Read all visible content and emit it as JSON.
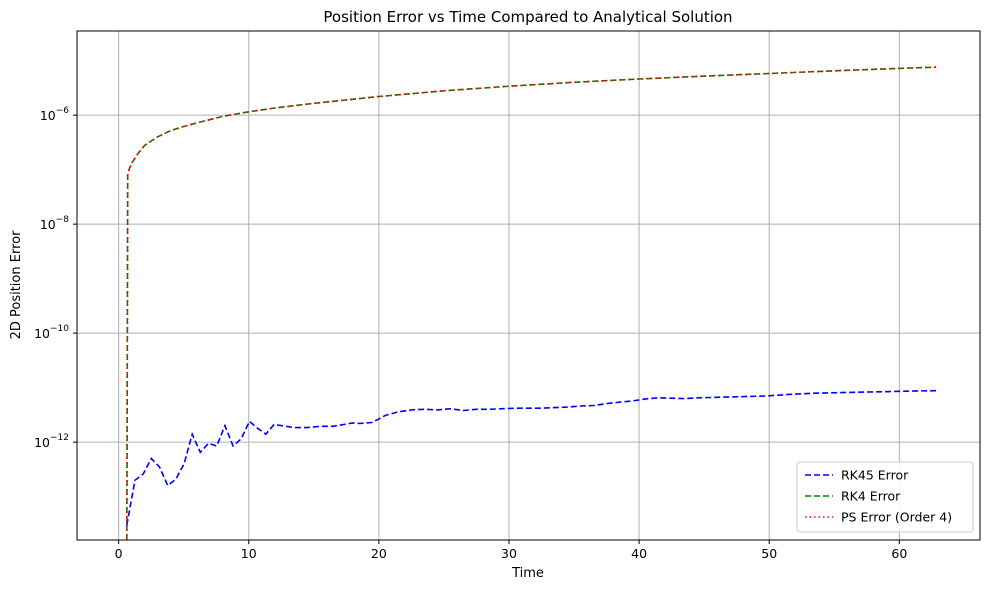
{
  "chart_data": {
    "type": "line",
    "title": "Position Error vs Time Compared to Analytical Solution",
    "xlabel": "Time",
    "ylabel": "2D Position Error",
    "xlim": [
      -3.2,
      66.2
    ],
    "ylim": [
      1.6e-14,
      3.5e-05
    ],
    "yscale": "log",
    "grid": true,
    "legend_position": "lower right",
    "x_ticks": [
      {
        "value": 0,
        "label": "0"
      },
      {
        "value": 10,
        "label": "10"
      },
      {
        "value": 20,
        "label": "20"
      },
      {
        "value": 30,
        "label": "30"
      },
      {
        "value": 40,
        "label": "40"
      },
      {
        "value": 50,
        "label": "50"
      },
      {
        "value": 60,
        "label": "60"
      }
    ],
    "y_ticks": [
      {
        "value": 1e-12,
        "base": "10",
        "exp": "−12"
      },
      {
        "value": 1e-10,
        "base": "10",
        "exp": "−10"
      },
      {
        "value": 1e-08,
        "base": "10",
        "exp": "−8"
      },
      {
        "value": 1e-06,
        "base": "10",
        "exp": "−6"
      }
    ],
    "series": [
      {
        "name": "RK45 Error",
        "color": "#0000ff",
        "style": "dashed",
        "x": [
          0.63,
          1.26,
          1.89,
          2.51,
          3.14,
          3.77,
          4.4,
          5.03,
          5.65,
          6.28,
          6.91,
          7.54,
          8.17,
          8.8,
          9.42,
          10.05,
          10.68,
          11.31,
          11.94,
          12.57,
          13.5,
          14.5,
          15.5,
          16.5,
          17.5,
          18.0,
          18.5,
          19.5,
          20.5,
          21.5,
          22.5,
          23.5,
          24.5,
          25.5,
          26.5,
          27.5,
          28.5,
          29.5,
          30.5,
          31.5,
          32.5,
          33.5,
          34.5,
          35.5,
          36.5,
          37.5,
          38.5,
          39.5,
          40.5,
          41.5,
          42.5,
          43.5,
          44.5,
          45.5,
          46.5,
          47.5,
          48.5,
          49.5,
          50.5,
          51.5,
          52.5,
          53.5,
          54.5,
          55.5,
          56.5,
          57.5,
          58.5,
          59.5,
          60.5,
          61.5,
          62.83
        ],
        "y": [
          3e-14,
          2e-13,
          2.6e-13,
          5e-13,
          3.5e-13,
          1.6e-13,
          2.1e-13,
          4e-13,
          1.4e-12,
          6.5e-13,
          9.5e-13,
          8.5e-13,
          2e-12,
          8.5e-13,
          1.15e-12,
          2.4e-12,
          1.8e-12,
          1.4e-12,
          2.1e-12,
          2e-12,
          1.85e-12,
          1.85e-12,
          1.95e-12,
          1.95e-12,
          2.15e-12,
          2.25e-12,
          2.2e-12,
          2.3e-12,
          3.1e-12,
          3.6e-12,
          3.9e-12,
          4e-12,
          3.9e-12,
          4.1e-12,
          3.8e-12,
          4e-12,
          4e-12,
          4.1e-12,
          4.2e-12,
          4.2e-12,
          4.2e-12,
          4.3e-12,
          4.4e-12,
          4.6e-12,
          4.7e-12,
          5.1e-12,
          5.4e-12,
          5.7e-12,
          6.2e-12,
          6.5e-12,
          6.4e-12,
          6.3e-12,
          6.5e-12,
          6.6e-12,
          6.7e-12,
          6.8e-12,
          6.9e-12,
          7e-12,
          7.2e-12,
          7.5e-12,
          7.7e-12,
          7.9e-12,
          8e-12,
          8.1e-12,
          8.2e-12,
          8.3e-12,
          8.4e-12,
          8.5e-12,
          8.6e-12,
          8.7e-12,
          8.8e-12
        ]
      },
      {
        "name": "RK4 Error",
        "color": "#008000",
        "style": "dashed",
        "x": [
          0.63,
          0.65,
          0.7,
          0.8,
          1.0,
          1.5,
          2.0,
          3.0,
          4.0,
          5.0,
          6.0,
          8.0,
          10.0,
          12.0,
          15.0,
          18.0,
          20.0,
          25.0,
          30.0,
          35.0,
          40.0,
          45.0,
          50.0,
          55.0,
          60.0,
          62.83
        ],
        "y": [
          1.6e-14,
          1e-12,
          8e-08,
          1e-07,
          1.3e-07,
          2e-07,
          2.8e-07,
          4e-07,
          5.2e-07,
          6.2e-07,
          7.2e-07,
          9.5e-07,
          1.15e-06,
          1.35e-06,
          1.65e-06,
          1.95e-06,
          2.2e-06,
          2.8e-06,
          3.4e-06,
          4e-06,
          4.6e-06,
          5.2e-06,
          5.8e-06,
          6.5e-06,
          7.2e-06,
          7.6e-06
        ]
      },
      {
        "name": "PS Error (Order 4)",
        "color": "#ff0000",
        "style": "dotted",
        "x": [
          0.63,
          0.65,
          0.7,
          0.8,
          1.0,
          1.5,
          2.0,
          3.0,
          4.0,
          5.0,
          6.0,
          8.0,
          10.0,
          12.0,
          15.0,
          18.0,
          20.0,
          25.0,
          30.0,
          35.0,
          40.0,
          45.0,
          50.0,
          55.0,
          60.0,
          62.83
        ],
        "y": [
          1.6e-14,
          1e-12,
          8e-08,
          1e-07,
          1.3e-07,
          2e-07,
          2.8e-07,
          4e-07,
          5.2e-07,
          6.2e-07,
          7.2e-07,
          9.5e-07,
          1.15e-06,
          1.35e-06,
          1.65e-06,
          1.95e-06,
          2.2e-06,
          2.8e-06,
          3.4e-06,
          4e-06,
          4.6e-06,
          5.2e-06,
          5.8e-06,
          6.5e-06,
          7.2e-06,
          7.6e-06
        ]
      }
    ]
  }
}
